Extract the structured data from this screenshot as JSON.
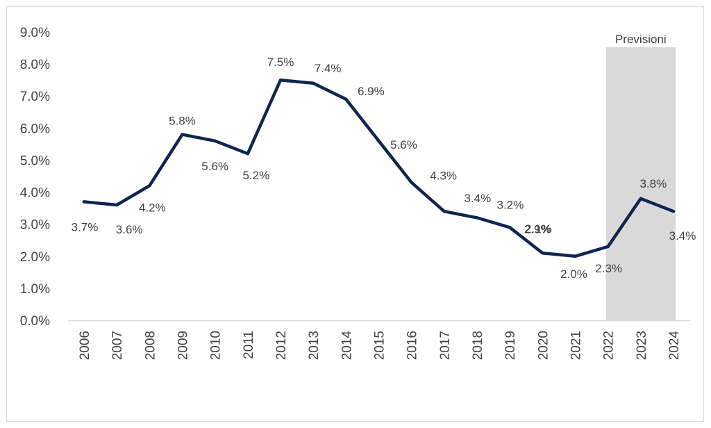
{
  "chart_data": {
    "type": "line",
    "x": [
      "2006",
      "2007",
      "2008",
      "2009",
      "2010",
      "2011",
      "2012",
      "2013",
      "2014",
      "2015",
      "2016",
      "2017",
      "2018",
      "2019",
      "2020",
      "2021",
      "2022",
      "2023",
      "2024"
    ],
    "series": [
      {
        "values": [
          3.7,
          3.6,
          4.2,
          5.8,
          5.6,
          5.2,
          7.5,
          7.4,
          6.9,
          5.6,
          4.3,
          3.4,
          3.2,
          2.9,
          2.1,
          2.0,
          2.3,
          3.8,
          3.4
        ]
      }
    ],
    "data_labels": [
      "3.7%",
      "3.6%",
      "4.2%",
      "5.8%",
      "5.6%",
      "5.2%",
      "7.5%",
      "7.4%",
      "6.9%",
      "5.6%",
      "4.3%",
      "3.4%",
      "3.2%",
      "2.9%",
      "2.1%",
      "2.0%",
      "2.3%",
      "3.8%",
      "3.4%"
    ],
    "y_ticks": [
      "0.0%",
      "1.0%",
      "2.0%",
      "3.0%",
      "4.0%",
      "5.0%",
      "6.0%",
      "7.0%",
      "8.0%",
      "9.0%"
    ],
    "ylim": [
      0,
      9
    ],
    "forecast": {
      "label": "Previsioni",
      "from": "2022",
      "to": "2024"
    },
    "line_color": "#0d2651",
    "forecast_color": "#d9d9d9",
    "grid": false
  }
}
